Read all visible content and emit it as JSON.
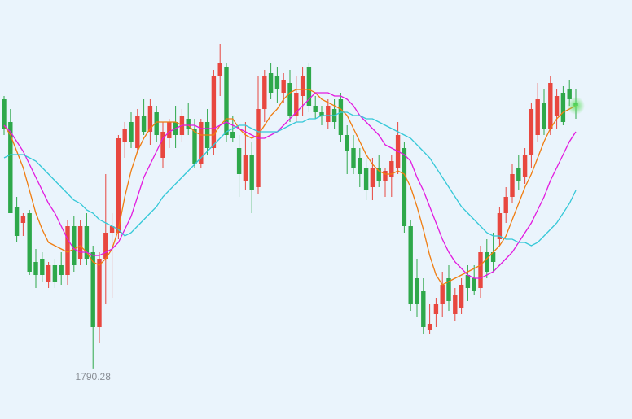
{
  "chart_data": {
    "type": "candlestick",
    "ylim": [
      1774.75,
      1903.5
    ],
    "up_color": "#e8473f",
    "down_color": "#2ea84a",
    "open": [
      1873,
      1866,
      1840,
      1835,
      1838,
      1823,
      1824,
      1817,
      1822,
      1822,
      1819,
      1834,
      1824,
      1834,
      1826,
      1803,
      1824,
      1832,
      1832,
      1860,
      1866,
      1858,
      1868,
      1863,
      1869,
      1855,
      1861,
      1866,
      1862,
      1867,
      1864,
      1853,
      1866,
      1858,
      1880,
      1883,
      1863,
      1858,
      1848,
      1856,
      1846,
      1870,
      1881,
      1880,
      1875,
      1878,
      1868,
      1874,
      1883,
      1871,
      1869,
      1866,
      1870,
      1873,
      1862,
      1858,
      1855,
      1852,
      1846,
      1852,
      1848,
      1849,
      1852,
      1858,
      1834,
      1818,
      1814,
      1802,
      1807,
      1810,
      1818,
      1807,
      1809,
      1819,
      1818,
      1815,
      1826,
      1826,
      1830,
      1838,
      1843,
      1852,
      1849,
      1856,
      1862,
      1872,
      1864,
      1868,
      1875,
      1876,
      1872
    ],
    "high": [
      1874,
      1870,
      1843,
      1838,
      1839,
      1827,
      1826,
      1823,
      1824,
      1826,
      1836,
      1837,
      1836,
      1838,
      1828,
      1826,
      1850,
      1838,
      1862,
      1866,
      1869,
      1870,
      1873,
      1873,
      1871,
      1866,
      1867,
      1871,
      1870,
      1872,
      1867,
      1867,
      1870,
      1882,
      1890,
      1884,
      1868,
      1862,
      1866,
      1860,
      1880,
      1882,
      1884,
      1883,
      1881,
      1882,
      1880,
      1883,
      1884,
      1874,
      1871,
      1873,
      1873,
      1875,
      1865,
      1862,
      1858,
      1855,
      1855,
      1856,
      1852,
      1856,
      1866,
      1860,
      1836,
      1824,
      1818,
      1810,
      1812,
      1820,
      1822,
      1815,
      1818,
      1822,
      1822,
      1828,
      1830,
      1832,
      1840,
      1846,
      1853,
      1856,
      1858,
      1872,
      1878,
      1876,
      1880,
      1876,
      1877,
      1879,
      1876
    ],
    "low": [
      1862,
      1838,
      1829,
      1831,
      1819,
      1815,
      1817,
      1815,
      1815,
      1816,
      1816,
      1820,
      1822,
      1822,
      1790.28,
      1798,
      1810,
      1812,
      1830,
      1855,
      1858,
      1857,
      1862,
      1859,
      1860,
      1852,
      1858,
      1858,
      1860,
      1862,
      1852,
      1852,
      1856,
      1856,
      1874,
      1860,
      1860,
      1843,
      1845,
      1838,
      1844,
      1866,
      1873,
      1872,
      1872,
      1866,
      1866,
      1868,
      1869,
      1867,
      1865,
      1864,
      1864,
      1860,
      1850,
      1850,
      1846,
      1842,
      1842,
      1846,
      1843,
      1843,
      1850,
      1832,
      1808,
      1806,
      1801,
      1801,
      1803,
      1806,
      1808,
      1805,
      1807,
      1811,
      1813,
      1812,
      1818,
      1820,
      1828,
      1835,
      1841,
      1845,
      1847,
      1852,
      1860,
      1862,
      1862,
      1864,
      1865,
      1871,
      1867
    ],
    "close": [
      1864,
      1838,
      1831,
      1837,
      1820,
      1819,
      1819,
      1822,
      1817,
      1819,
      1834,
      1822,
      1834,
      1824,
      1803,
      1824,
      1832,
      1834,
      1861,
      1864,
      1860,
      1868,
      1863,
      1871,
      1862,
      1863,
      1866,
      1862,
      1868,
      1864,
      1853,
      1866,
      1858,
      1880,
      1884,
      1862,
      1861,
      1850,
      1856,
      1845,
      1870,
      1880,
      1875,
      1876,
      1879,
      1868,
      1875,
      1880,
      1871,
      1869,
      1868,
      1871,
      1866,
      1862,
      1857,
      1852,
      1850,
      1845,
      1852,
      1848,
      1851,
      1854,
      1862,
      1834,
      1810,
      1810,
      1803,
      1804,
      1810,
      1816,
      1811,
      1813,
      1816,
      1815,
      1814,
      1826,
      1820,
      1823,
      1838,
      1843,
      1850,
      1848,
      1856,
      1870,
      1873,
      1864,
      1878,
      1874,
      1866,
      1873,
      1871
    ],
    "lines": [
      {
        "color": "#f07c0f",
        "values": [
          1865,
          1862,
          1857,
          1852,
          1845,
          1838,
          1833,
          1829,
          1828,
          1827,
          1826,
          1827,
          1828,
          1826,
          1823,
          1822,
          1824,
          1827,
          1833,
          1843,
          1851,
          1857,
          1861,
          1864,
          1866,
          1866,
          1866,
          1866,
          1865,
          1865,
          1863,
          1862,
          1862,
          1862,
          1865,
          1867,
          1867,
          1864,
          1862,
          1861,
          1862,
          1865,
          1868,
          1870,
          1873,
          1875,
          1876,
          1876,
          1876,
          1875,
          1873,
          1872,
          1871,
          1870,
          1868,
          1864,
          1860,
          1856,
          1853,
          1851,
          1850,
          1850,
          1851,
          1850,
          1846,
          1840,
          1833,
          1825,
          1819,
          1816,
          1817,
          1818,
          1819,
          1820,
          1821,
          1822,
          1824,
          1826,
          1828,
          1831,
          1836,
          1841,
          1846,
          1850,
          1855,
          1860,
          1864,
          1867,
          1869,
          1870,
          1871
        ]
      },
      {
        "color": "#e21adf",
        "values": [
          1865,
          1863,
          1860,
          1857,
          1853,
          1849,
          1845,
          1841,
          1838,
          1834,
          1830,
          1827,
          1826,
          1826,
          1825,
          1825,
          1826,
          1827,
          1829,
          1833,
          1837,
          1843,
          1849,
          1853,
          1857,
          1861,
          1863,
          1864,
          1865,
          1865,
          1865,
          1864,
          1864,
          1864,
          1865,
          1866,
          1865,
          1864,
          1863,
          1862,
          1861,
          1861,
          1862,
          1863,
          1865,
          1867,
          1869,
          1871,
          1873,
          1875,
          1875,
          1875,
          1874,
          1874,
          1873,
          1871,
          1868,
          1866,
          1864,
          1862,
          1859,
          1858,
          1857,
          1856,
          1854,
          1849,
          1845,
          1840,
          1835,
          1830,
          1826,
          1823,
          1821,
          1819,
          1818,
          1818,
          1819,
          1820,
          1822,
          1824,
          1826,
          1829,
          1832,
          1835,
          1839,
          1843,
          1848,
          1852,
          1856,
          1860,
          1863
        ]
      },
      {
        "color": "#35c8d8",
        "values": [
          1855,
          1856,
          1856,
          1856,
          1855,
          1854,
          1852,
          1850,
          1848,
          1846,
          1844,
          1842,
          1841,
          1839,
          1838,
          1836,
          1835,
          1834,
          1833,
          1831,
          1832,
          1834,
          1836,
          1838,
          1840,
          1843,
          1845,
          1847,
          1849,
          1851,
          1853,
          1855,
          1857,
          1859,
          1861,
          1863,
          1864,
          1865,
          1865,
          1864,
          1863,
          1863,
          1863,
          1863,
          1864,
          1865,
          1866,
          1866,
          1867,
          1867,
          1868,
          1868,
          1868,
          1869,
          1869,
          1868,
          1868,
          1867,
          1867,
          1866,
          1865,
          1864,
          1863,
          1862,
          1861,
          1859,
          1857,
          1855,
          1852,
          1849,
          1846,
          1843,
          1840,
          1838,
          1836,
          1834,
          1832,
          1831,
          1831,
          1830,
          1830,
          1829,
          1829,
          1828,
          1829,
          1831,
          1833,
          1835,
          1838,
          1841,
          1845
        ]
      }
    ]
  }
}
